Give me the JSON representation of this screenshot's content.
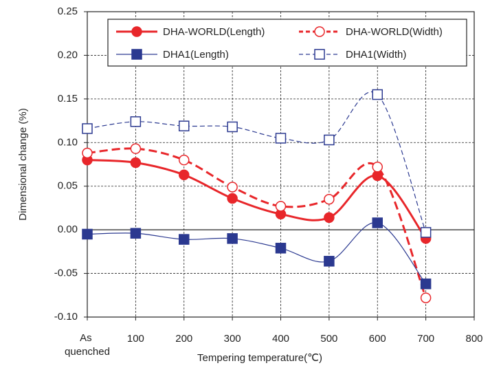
{
  "chart_data": {
    "type": "line",
    "xlabel": "Tempering temperature(℃)",
    "ylabel": "Dimensional change (%)",
    "x": [
      0,
      100,
      200,
      300,
      400,
      500,
      600,
      700
    ],
    "xlim": [
      0,
      800
    ],
    "xticks": [
      {
        "value": 0,
        "label": "As quenched"
      },
      100,
      200,
      300,
      400,
      500,
      600,
      700,
      800
    ],
    "ylim": [
      -0.1,
      0.25
    ],
    "yticks": [
      {
        "value": -0.1,
        "label": "-0.10"
      },
      -0.05,
      {
        "value": 0,
        "label": "0.00"
      },
      0.05,
      {
        "value": 0.1,
        "label": "0.10"
      },
      0.15,
      {
        "value": 0.2,
        "label": "0.20"
      },
      0.25
    ],
    "grid": true,
    "legend": "top",
    "series": [
      {
        "name": "DHA-WORLD(Length)",
        "color": "#e8262a",
        "marker": "circle",
        "filled": true,
        "dashed": false,
        "width": 3,
        "values": [
          0.08,
          0.077,
          0.063,
          0.036,
          0.018,
          0.014,
          0.062,
          -0.01
        ]
      },
      {
        "name": "DHA-WORLD(Width)",
        "color": "#e8262a",
        "marker": "circle",
        "filled": false,
        "dashed": true,
        "width": 3,
        "values": [
          0.088,
          0.093,
          0.08,
          0.049,
          0.027,
          0.035,
          0.072,
          -0.078
        ]
      },
      {
        "name": "DHA1(Length)",
        "color": "#2b3990",
        "marker": "square",
        "filled": true,
        "dashed": false,
        "width": 1.2,
        "values": [
          -0.005,
          -0.004,
          -0.011,
          -0.01,
          -0.021,
          -0.036,
          0.008,
          -0.062
        ]
      },
      {
        "name": "DHA1(Width)",
        "color": "#2b3990",
        "marker": "square",
        "filled": false,
        "dashed": true,
        "width": 1.2,
        "values": [
          0.116,
          0.124,
          0.119,
          0.118,
          0.105,
          0.103,
          0.155,
          -0.003
        ]
      }
    ]
  }
}
